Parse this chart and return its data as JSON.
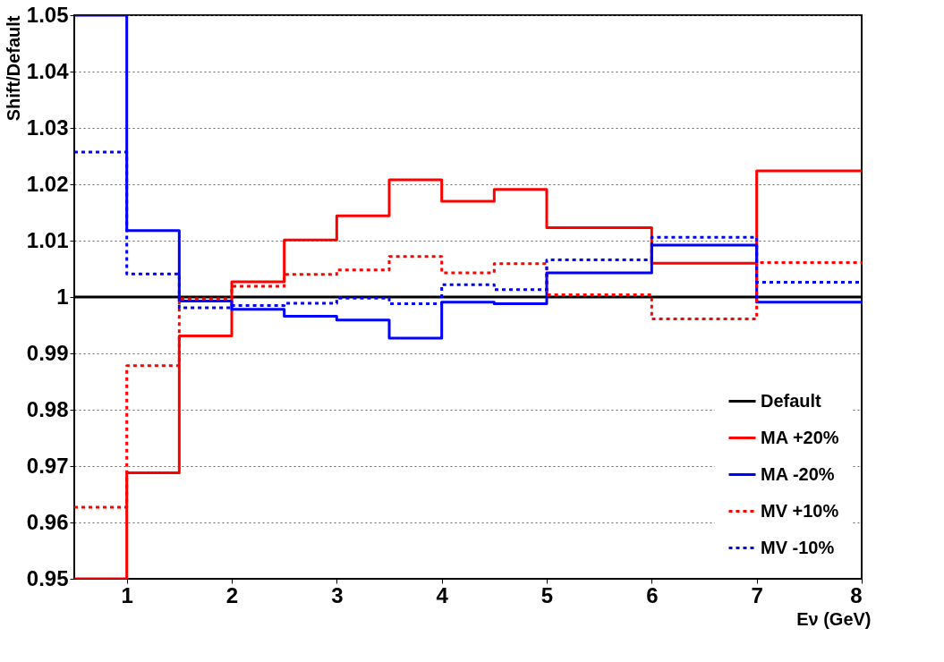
{
  "chart_data": {
    "type": "step",
    "xlabel": "Eν (GeV)",
    "ylabel": "Shift/Default",
    "x": [
      0.5,
      1,
      1.5,
      2,
      2.5,
      3,
      3.5,
      4,
      4.5,
      5,
      6,
      7
    ],
    "series": [
      {
        "name": "Default",
        "color": "#000000",
        "line_style": "solid",
        "values": [
          1,
          1,
          1,
          1,
          1,
          1,
          1,
          1,
          1,
          1,
          1,
          1
        ]
      },
      {
        "name": "MA +20%",
        "color": "#ff0000",
        "line_style": "solid",
        "values": [
          0.95,
          0.9688,
          0.9931,
          1.0027,
          1.0101,
          1.0144,
          1.0208,
          1.017,
          1.0191,
          1.0123,
          1.006,
          1.0224
        ]
      },
      {
        "name": "MA -20%",
        "color": "#0000ff",
        "line_style": "solid",
        "values": [
          1.05,
          1.0118,
          0.9993,
          0.9978,
          0.9966,
          0.9959,
          0.9927,
          0.9991,
          0.9988,
          1.0043,
          1.0092,
          0.9991
        ]
      },
      {
        "name": "MV +10%",
        "color": "#ff0000",
        "line_style": "dotted",
        "values": [
          0.9627,
          0.9878,
          0.9997,
          1.0019,
          1.004,
          1.0048,
          1.0072,
          1.0043,
          1.0059,
          1.0004,
          0.9961,
          1.0061
        ]
      },
      {
        "name": "MV -10%",
        "color": "#0000ff",
        "line_style": "dotted",
        "values": [
          1.0257,
          1.0041,
          0.9981,
          0.9985,
          0.9989,
          0.9998,
          0.9988,
          1.0022,
          1.0013,
          1.0066,
          1.0106,
          1.0026
        ]
      }
    ],
    "xlim": [
      0.5,
      8
    ],
    "xticks": [
      1,
      2,
      3,
      4,
      5,
      6,
      7,
      8
    ],
    "ylim": [
      0.95,
      1.05
    ],
    "yticks": [
      0.95,
      0.96,
      0.97,
      0.98,
      0.99,
      1,
      1.01,
      1.02,
      1.03,
      1.04,
      1.05
    ],
    "grid": "y",
    "legend": "bottom right"
  }
}
